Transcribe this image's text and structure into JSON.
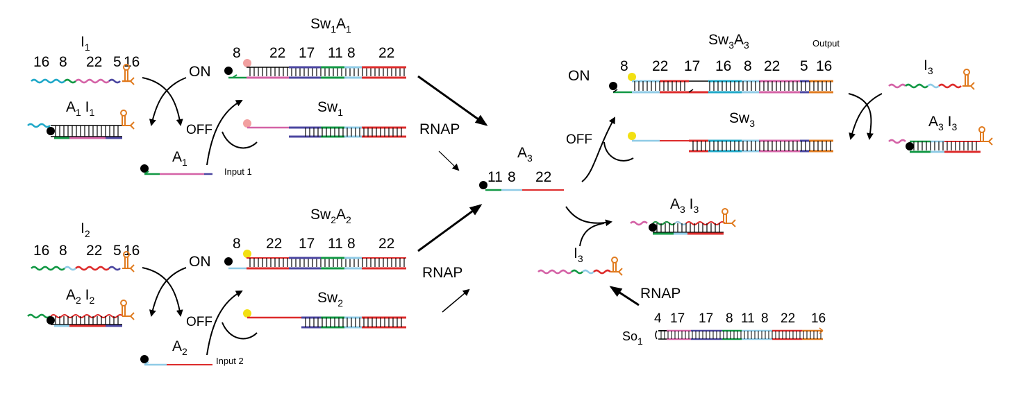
{
  "colors": {
    "cyan": "#1fa8c8",
    "pink": "#d462a6",
    "navy": "#4b46a0",
    "green": "#119844",
    "lightblue": "#8fcbe6",
    "red": "#dd2b2b",
    "orange": "#e07b1f",
    "black": "#000000",
    "peach": "#f2a0a0",
    "yellow": "#f2e012"
  },
  "top_left": {
    "inhibitor": {
      "main": "I",
      "sub": "1"
    },
    "inhibitor_segments": [
      "16",
      "8",
      "22",
      "5",
      "16"
    ],
    "complex": {
      "a_main": "A",
      "a_sub": "1",
      "i_main": "I",
      "i_sub": "1"
    },
    "on_label": "ON",
    "off_label": "OFF",
    "activator": {
      "main": "A",
      "sub": "1"
    },
    "input_label": "Input 1",
    "switch_complex": {
      "sw": "Sw",
      "sw_sub": "1",
      "a": "A",
      "a_sub": "1"
    },
    "switch_segments": [
      "8",
      "22",
      "17",
      "11",
      "8",
      "22"
    ],
    "switch": {
      "sw": "Sw",
      "sw_sub": "1"
    }
  },
  "bottom_left": {
    "inhibitor": {
      "main": "I",
      "sub": "2"
    },
    "inhibitor_segments": [
      "16",
      "8",
      "22",
      "5",
      "16"
    ],
    "complex": {
      "a_main": "A",
      "a_sub": "2",
      "i_main": "I",
      "i_sub": "2"
    },
    "on_label": "ON",
    "off_label": "OFF",
    "activator": {
      "main": "A",
      "sub": "2"
    },
    "input_label": "Input 2",
    "switch_complex": {
      "sw": "Sw",
      "sw_sub": "2",
      "a": "A",
      "a_sub": "2"
    },
    "switch_segments": [
      "8",
      "22",
      "17",
      "11",
      "8",
      "22"
    ],
    "switch": {
      "sw": "Sw",
      "sw_sub": "2"
    }
  },
  "center": {
    "rnap_top": "RNAP",
    "rnap_bottom": "RNAP",
    "activator": {
      "main": "A",
      "sub": "3"
    },
    "activator_segments": [
      "11",
      "8",
      "22"
    ]
  },
  "right": {
    "switch_complex": {
      "sw": "Sw",
      "sw_sub": "3",
      "a": "A",
      "a_sub": "3"
    },
    "output_label": "Output",
    "on_label": "ON",
    "off_label": "OFF",
    "switch_segments": [
      "8",
      "22",
      "17",
      "16",
      "8",
      "22",
      "5",
      "16"
    ],
    "switch": {
      "sw": "Sw",
      "sw_sub": "3"
    },
    "inhibitor": {
      "main": "I",
      "sub": "3"
    },
    "complex": {
      "a_main": "A",
      "a_sub": "3",
      "i_main": "I",
      "i_sub": "3"
    },
    "mid_complex": {
      "a_main": "A",
      "a_sub": "3",
      "i_main": "I",
      "i_sub": "3"
    },
    "mid_inhibitor": {
      "main": "I",
      "sub": "3"
    },
    "rnap": "RNAP",
    "source": {
      "main": "So",
      "sub": "1"
    },
    "source_segments": [
      "4",
      "17",
      "17",
      "8",
      "11",
      "8",
      "22",
      "16"
    ]
  }
}
